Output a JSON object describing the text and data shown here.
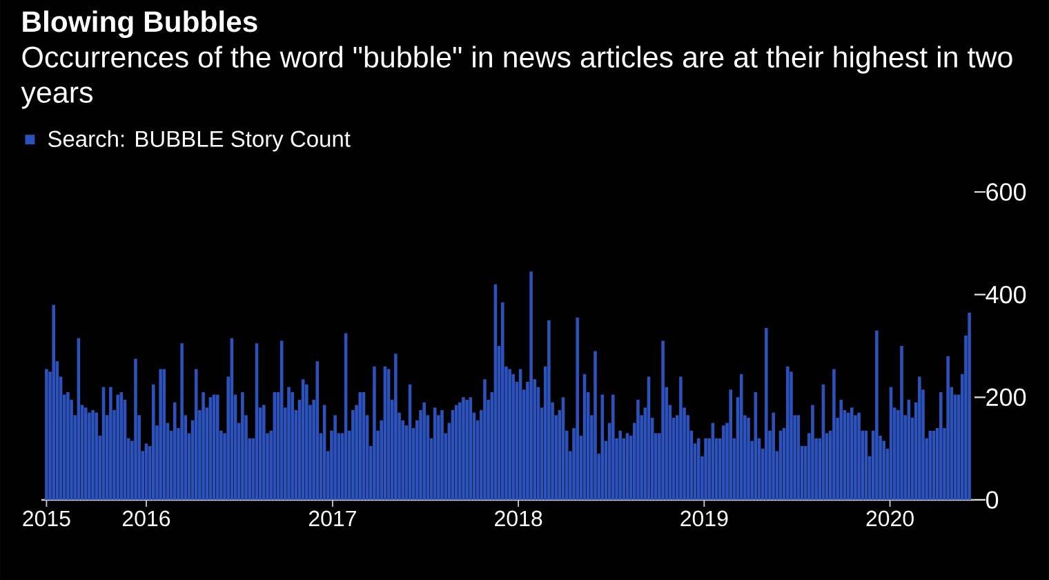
{
  "chart_data": {
    "type": "bar",
    "title": "Blowing Bubbles",
    "subtitle": "Occurrences of the word \"bubble\" in news articles are at their highest in two years",
    "legend": "top left",
    "x": [
      "2015-06-19",
      "2015-06-26",
      "2015-07-03",
      "2015-07-10",
      "2015-07-17",
      "2015-07-24",
      "2015-07-31",
      "2015-08-07",
      "2015-08-14",
      "2015-08-21",
      "2015-08-28",
      "2015-09-04",
      "2015-09-11",
      "2015-09-18",
      "2015-09-25",
      "2015-10-02",
      "2015-10-09",
      "2015-10-16",
      "2015-10-23",
      "2015-10-30",
      "2015-11-06",
      "2015-11-13",
      "2015-11-20",
      "2015-11-27",
      "2015-12-04",
      "2015-12-11",
      "2015-12-18",
      "2015-12-25",
      "2016-01-01",
      "2016-01-08",
      "2016-01-15",
      "2016-01-22",
      "2016-01-29",
      "2016-02-05",
      "2016-02-12",
      "2016-02-19",
      "2016-02-26",
      "2016-03-04",
      "2016-03-11",
      "2016-03-18",
      "2016-03-25",
      "2016-04-01",
      "2016-04-08",
      "2016-04-15",
      "2016-04-22",
      "2016-04-29",
      "2016-05-06",
      "2016-05-13",
      "2016-05-20",
      "2016-05-27",
      "2016-06-03",
      "2016-06-10",
      "2016-06-17",
      "2016-06-24",
      "2016-07-01",
      "2016-07-08",
      "2016-07-15",
      "2016-07-22",
      "2016-07-29",
      "2016-08-05",
      "2016-08-12",
      "2016-08-19",
      "2016-08-26",
      "2016-09-02",
      "2016-09-09",
      "2016-09-16",
      "2016-09-23",
      "2016-09-30",
      "2016-10-07",
      "2016-10-14",
      "2016-10-21",
      "2016-10-28",
      "2016-11-04",
      "2016-11-11",
      "2016-11-18",
      "2016-11-25",
      "2016-12-02",
      "2016-12-09",
      "2016-12-16",
      "2016-12-23",
      "2016-12-30",
      "2017-01-06",
      "2017-01-13",
      "2017-01-20",
      "2017-01-27",
      "2017-02-03",
      "2017-02-10",
      "2017-02-17",
      "2017-02-24",
      "2017-03-03",
      "2017-03-10",
      "2017-03-17",
      "2017-03-24",
      "2017-03-31",
      "2017-04-07",
      "2017-04-14",
      "2017-04-21",
      "2017-04-28",
      "2017-05-05",
      "2017-05-12",
      "2017-05-19",
      "2017-05-26",
      "2017-06-02",
      "2017-06-09",
      "2017-06-16",
      "2017-06-23",
      "2017-06-30",
      "2017-07-07",
      "2017-07-14",
      "2017-07-21",
      "2017-07-28",
      "2017-08-04",
      "2017-08-11",
      "2017-08-18",
      "2017-08-25",
      "2017-09-01",
      "2017-09-08",
      "2017-09-15",
      "2017-09-22",
      "2017-09-29",
      "2017-10-06",
      "2017-10-13",
      "2017-10-20",
      "2017-10-27",
      "2017-11-03",
      "2017-11-10",
      "2017-11-17",
      "2017-11-24",
      "2017-12-01",
      "2017-12-08",
      "2017-12-15",
      "2017-12-22",
      "2017-12-29",
      "2018-01-05",
      "2018-01-12",
      "2018-01-19",
      "2018-01-26",
      "2018-02-02",
      "2018-02-09",
      "2018-02-16",
      "2018-02-23",
      "2018-03-02",
      "2018-03-09",
      "2018-03-16",
      "2018-03-23",
      "2018-03-30",
      "2018-04-06",
      "2018-04-13",
      "2018-04-20",
      "2018-04-27",
      "2018-05-04",
      "2018-05-11",
      "2018-05-18",
      "2018-05-25",
      "2018-06-01",
      "2018-06-08",
      "2018-06-15",
      "2018-06-22",
      "2018-06-29",
      "2018-07-06",
      "2018-07-13",
      "2018-07-20",
      "2018-07-27",
      "2018-08-03",
      "2018-08-10",
      "2018-08-17",
      "2018-08-24",
      "2018-08-31",
      "2018-09-07",
      "2018-09-14",
      "2018-09-21",
      "2018-09-28",
      "2018-10-05",
      "2018-10-12",
      "2018-10-19",
      "2018-10-26",
      "2018-11-02",
      "2018-11-09",
      "2018-11-16",
      "2018-11-23",
      "2018-11-30",
      "2018-12-07",
      "2018-12-14",
      "2018-12-21",
      "2018-12-28",
      "2019-01-04",
      "2019-01-11",
      "2019-01-18",
      "2019-01-25",
      "2019-02-01",
      "2019-02-08",
      "2019-02-15",
      "2019-02-22",
      "2019-03-01",
      "2019-03-08",
      "2019-03-15",
      "2019-03-22",
      "2019-03-29",
      "2019-04-05",
      "2019-04-12",
      "2019-04-19",
      "2019-04-26",
      "2019-05-03",
      "2019-05-10",
      "2019-05-17",
      "2019-05-24",
      "2019-05-31",
      "2019-06-07",
      "2019-06-14",
      "2019-06-21",
      "2019-06-28",
      "2019-07-05",
      "2019-07-12",
      "2019-07-19",
      "2019-07-26",
      "2019-08-02",
      "2019-08-09",
      "2019-08-16",
      "2019-08-23",
      "2019-08-30",
      "2019-09-06",
      "2019-09-13",
      "2019-09-20",
      "2019-09-27",
      "2019-10-04",
      "2019-10-11",
      "2019-10-18",
      "2019-10-25",
      "2019-11-01",
      "2019-11-08",
      "2019-11-15",
      "2019-11-22",
      "2019-11-29",
      "2019-12-06",
      "2019-12-13",
      "2019-12-20",
      "2019-12-27",
      "2020-01-03",
      "2020-01-10",
      "2020-01-17",
      "2020-01-24",
      "2020-01-31",
      "2020-02-07",
      "2020-02-14",
      "2020-02-21",
      "2020-02-28",
      "2020-03-06",
      "2020-03-13",
      "2020-03-20",
      "2020-03-27",
      "2020-04-03",
      "2020-04-10",
      "2020-04-17",
      "2020-04-24",
      "2020-05-01",
      "2020-05-08",
      "2020-05-15",
      "2020-05-22",
      "2020-05-29",
      "2020-06-05"
    ],
    "series": [
      {
        "name": "Search: BUBBLE Story Count",
        "color": "#2c52bd",
        "values": [
          255,
          250,
          380,
          270,
          240,
          205,
          210,
          195,
          165,
          315,
          185,
          180,
          170,
          175,
          170,
          125,
          220,
          165,
          220,
          175,
          205,
          210,
          195,
          120,
          115,
          275,
          165,
          95,
          110,
          105,
          225,
          145,
          255,
          255,
          150,
          135,
          190,
          140,
          305,
          165,
          130,
          155,
          255,
          175,
          210,
          180,
          200,
          205,
          205,
          135,
          130,
          240,
          315,
          205,
          150,
          210,
          165,
          120,
          120,
          305,
          180,
          185,
          130,
          135,
          210,
          210,
          310,
          180,
          220,
          210,
          175,
          195,
          235,
          225,
          185,
          195,
          270,
          130,
          185,
          95,
          135,
          165,
          130,
          130,
          325,
          135,
          175,
          185,
          210,
          210,
          165,
          105,
          260,
          135,
          155,
          260,
          255,
          195,
          285,
          170,
          155,
          145,
          225,
          140,
          155,
          175,
          190,
          165,
          120,
          180,
          165,
          175,
          130,
          150,
          175,
          185,
          190,
          200,
          195,
          200,
          170,
          155,
          175,
          235,
          195,
          210,
          420,
          300,
          385,
          260,
          255,
          245,
          230,
          255,
          215,
          230,
          445,
          235,
          220,
          180,
          260,
          350,
          190,
          165,
          175,
          200,
          135,
          95,
          140,
          355,
          125,
          245,
          210,
          165,
          290,
          90,
          205,
          115,
          150,
          205,
          120,
          135,
          120,
          130,
          125,
          150,
          195,
          165,
          180,
          240,
          160,
          130,
          130,
          310,
          220,
          185,
          160,
          165,
          240,
          180,
          165,
          135,
          110,
          120,
          85,
          120,
          120,
          150,
          120,
          120,
          145,
          150,
          215,
          120,
          200,
          245,
          165,
          160,
          115,
          210,
          120,
          100,
          335,
          135,
          170,
          95,
          135,
          140,
          260,
          250,
          165,
          165,
          105,
          105,
          130,
          185,
          120,
          120,
          225,
          130,
          135,
          255,
          160,
          195,
          175,
          170,
          180,
          165,
          170,
          135,
          135,
          85,
          135,
          330,
          125,
          115,
          100,
          220,
          180,
          175,
          300,
          165,
          195,
          160,
          190,
          240,
          215,
          120,
          135,
          135,
          140,
          210,
          140,
          280,
          220,
          205,
          205,
          245,
          320,
          365
        ]
      }
    ],
    "xlim": [
      "2015-06-09",
      "2020-06-15"
    ],
    "xticks": [
      {
        "value": "2015-06-19",
        "label": "2015"
      },
      {
        "value": "2016-01-01",
        "label": "2016"
      },
      {
        "value": "2017-01-01",
        "label": "2017"
      },
      {
        "value": "2018-01-01",
        "label": "2018"
      },
      {
        "value": "2019-01-01",
        "label": "2019"
      },
      {
        "value": "2020-01-01",
        "label": "2020"
      }
    ],
    "ylim": [
      0,
      600
    ],
    "yticks": [
      0,
      200,
      400,
      600
    ]
  }
}
